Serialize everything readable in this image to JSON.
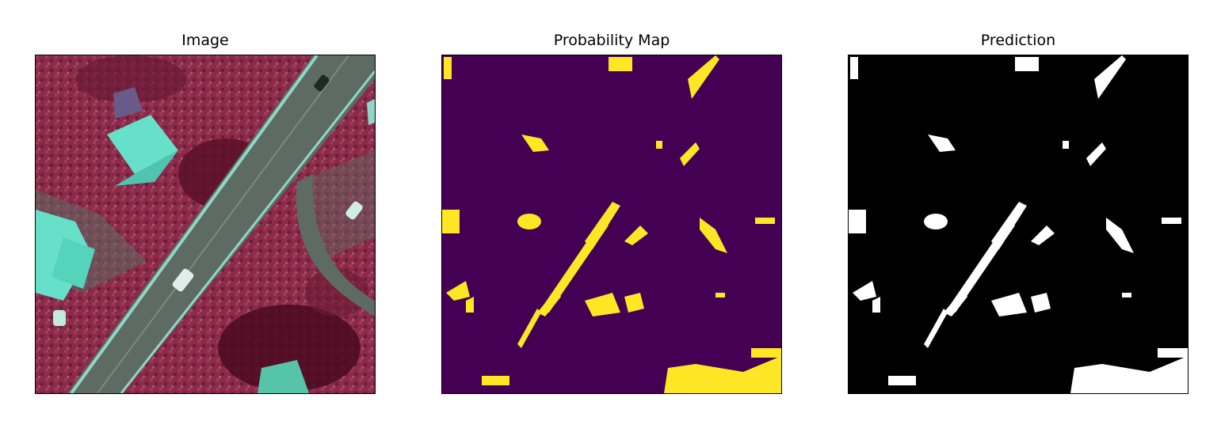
{
  "panels": [
    {
      "title": "Image"
    },
    {
      "title": "Probability Map"
    },
    {
      "title": "Prediction"
    }
  ],
  "colors": {
    "vegetation": "#8b2a4a",
    "vegetation_dark": "#5a0f28",
    "road": "#5d6b63",
    "road_edge": "#8fd6c8",
    "roof": "#66e0c8",
    "prob_background": "#440154",
    "prob_foreground": "#fde725",
    "pred_background": "#000000",
    "pred_foreground": "#ffffff"
  }
}
